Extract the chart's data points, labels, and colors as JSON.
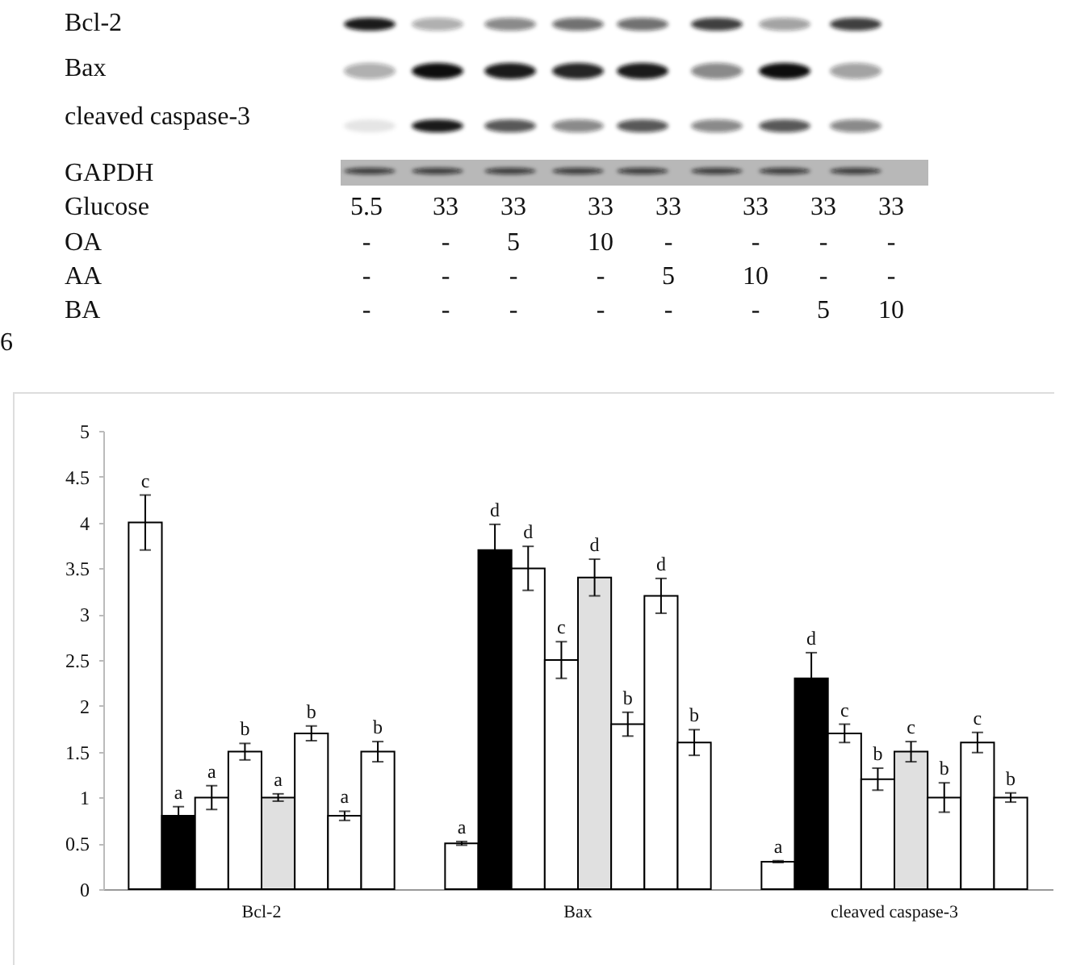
{
  "chart_data": {
    "type": "bar",
    "categories": [
      "Bcl-2",
      "Bax",
      "cleaved caspase-3"
    ],
    "series": [
      {
        "color": "#ffffff",
        "values": [
          4.0,
          0.5,
          0.3
        ],
        "errors": [
          0.3,
          0.02,
          0.01
        ],
        "value_labels": [
          "c",
          "a",
          "a"
        ]
      },
      {
        "color": "#000000",
        "values": [
          0.8,
          3.7,
          2.3
        ],
        "errors": [
          0.1,
          0.28,
          0.28
        ],
        "value_labels": [
          "a",
          "d",
          "d"
        ]
      },
      {
        "color": "#ffffff",
        "values": [
          1.0,
          3.5,
          1.7
        ],
        "errors": [
          0.13,
          0.24,
          0.1
        ],
        "value_labels": [
          "a",
          "d",
          "c"
        ]
      },
      {
        "color": "#ffffff",
        "values": [
          1.5,
          2.5,
          1.2
        ],
        "errors": [
          0.09,
          0.2,
          0.12
        ],
        "value_labels": [
          "b",
          "c",
          "b"
        ]
      },
      {
        "color": "#e0e0e0",
        "values": [
          1.0,
          3.4,
          1.5
        ],
        "errors": [
          0.04,
          0.2,
          0.11
        ],
        "value_labels": [
          "a",
          "d",
          "c"
        ]
      },
      {
        "color": "#ffffff",
        "values": [
          1.7,
          1.8,
          1.0
        ],
        "errors": [
          0.08,
          0.13,
          0.16
        ],
        "value_labels": [
          "b",
          "b",
          "b"
        ]
      },
      {
        "color": "#ffffff",
        "values": [
          0.8,
          3.2,
          1.6
        ],
        "errors": [
          0.05,
          0.19,
          0.11
        ],
        "value_labels": [
          "a",
          "d",
          "c"
        ]
      },
      {
        "color": "#ffffff",
        "values": [
          1.5,
          1.6,
          1.0
        ],
        "errors": [
          0.11,
          0.14,
          0.05
        ],
        "value_labels": [
          "b",
          "b",
          "b"
        ]
      }
    ],
    "ylim": [
      0,
      5
    ],
    "yticks": [
      0,
      0.5,
      1,
      1.5,
      2,
      2.5,
      3,
      3.5,
      4,
      4.5,
      5
    ],
    "annotations": [
      "Bcl-2",
      "Bax",
      "cleaved caspase-3",
      "GAPDH",
      "Glucose",
      "5.5",
      "33",
      "33",
      "33",
      "33",
      "33",
      "33",
      "33",
      "OA",
      "-",
      "-",
      "5",
      "10",
      "-",
      "-",
      "-",
      "-",
      "AA",
      "-",
      "-",
      "-",
      "-",
      "5",
      "10",
      "-",
      "-",
      "BA",
      "-",
      "-",
      "-",
      "-",
      "-",
      "-",
      "5",
      "10",
      "6"
    ]
  }
}
